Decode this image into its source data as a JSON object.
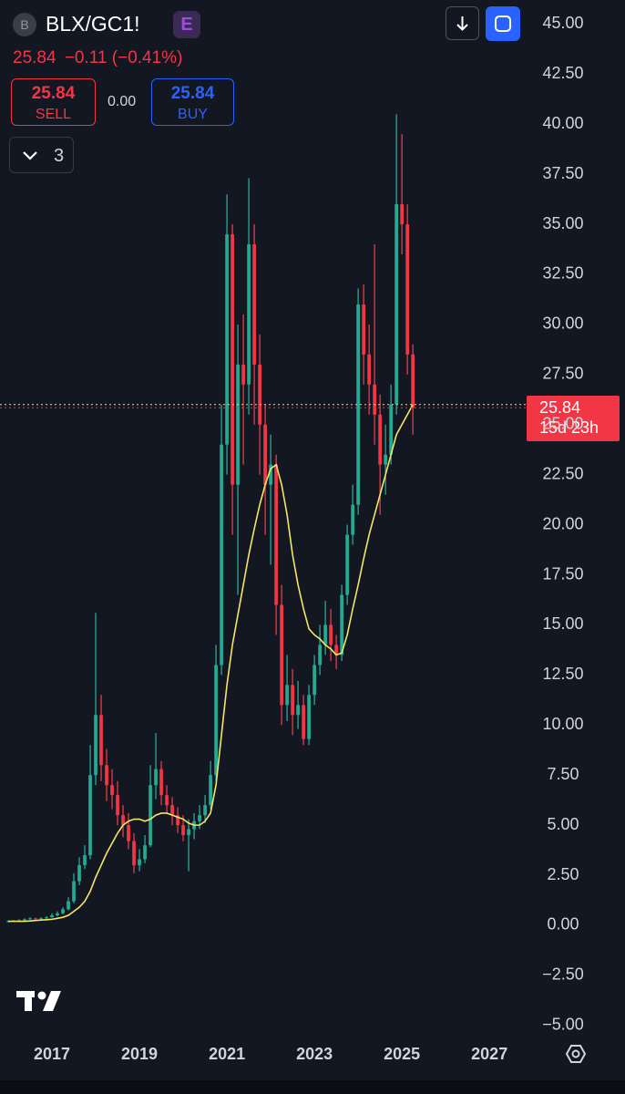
{
  "header": {
    "symbol": "BLX/GC1!",
    "symbol_icon": "B",
    "exchange_badge": "E",
    "last": "25.84",
    "change": "−0.11",
    "change_pct": "(−0.41%)",
    "sell_price": "25.84",
    "sell_label": "SELL",
    "spread": "0.00",
    "buy_price": "25.84",
    "buy_label": "BUY",
    "indicator_count": "3"
  },
  "chart_data": {
    "type": "candlestick",
    "up_color": "#22ab94",
    "down_color": "#f23645",
    "ma_color": "#f5e663",
    "countdown": "15d 23h",
    "xlim": [
      2015.8125,
      2027.85
    ],
    "xticks": [
      2017,
      2019,
      2021,
      2023,
      2025,
      2027
    ],
    "ylim": [
      -5.5,
      46.2
    ],
    "yticks": [
      {
        "value": 45,
        "label": "45.00"
      },
      {
        "value": 42.5,
        "label": "42.50"
      },
      {
        "value": 40,
        "label": "40.00"
      },
      {
        "value": 37.5,
        "label": "37.50"
      },
      {
        "value": 35,
        "label": "35.00"
      },
      {
        "value": 32.5,
        "label": "32.50"
      },
      {
        "value": 30,
        "label": "30.00"
      },
      {
        "value": 27.5,
        "label": "27.50"
      },
      {
        "value": 25,
        "label": "25.00"
      },
      {
        "value": 22.5,
        "label": "22.50"
      },
      {
        "value": 20,
        "label": "20.00"
      },
      {
        "value": 17.5,
        "label": "17.50"
      },
      {
        "value": 15,
        "label": "15.00"
      },
      {
        "value": 12.5,
        "label": "12.50"
      },
      {
        "value": 10,
        "label": "10.00"
      },
      {
        "value": 7.5,
        "label": "7.50"
      },
      {
        "value": 5,
        "label": "5.00"
      },
      {
        "value": 2.5,
        "label": "2.50"
      },
      {
        "value": 0,
        "label": "0.00"
      },
      {
        "value": -2.5,
        "label": "−2.50"
      },
      {
        "value": -5,
        "label": "−5.00"
      }
    ],
    "grid": false,
    "x": [
      2016,
      2016.125,
      2016.25,
      2016.375,
      2016.5,
      2016.625,
      2016.75,
      2016.875,
      2017,
      2017.125,
      2017.25,
      2017.375,
      2017.5,
      2017.625,
      2017.75,
      2017.875,
      2018,
      2018.125,
      2018.25,
      2018.375,
      2018.5,
      2018.625,
      2018.75,
      2018.875,
      2019,
      2019.125,
      2019.25,
      2019.375,
      2019.5,
      2019.625,
      2019.75,
      2019.875,
      2020,
      2020.125,
      2020.25,
      2020.375,
      2020.5,
      2020.625,
      2020.75,
      2020.875,
      2021,
      2021.125,
      2021.25,
      2021.375,
      2021.5,
      2021.625,
      2021.75,
      2021.875,
      2022,
      2022.125,
      2022.25,
      2022.375,
      2022.5,
      2022.625,
      2022.75,
      2022.875,
      2023,
      2023.125,
      2023.25,
      2023.375,
      2023.5,
      2023.625,
      2023.75,
      2023.875,
      2024,
      2024.125,
      2024.25,
      2024.375,
      2024.5,
      2024.625,
      2024.75,
      2024.875,
      2025,
      2025.125,
      2025.25
    ],
    "open": [
      0.18,
      0.2,
      0.22,
      0.25,
      0.3,
      0.35,
      0.3,
      0.35,
      0.4,
      0.5,
      0.6,
      0.8,
      1.2,
      2.2,
      3.0,
      3.5,
      7.5,
      10.5,
      8.0,
      7.0,
      6.5,
      5.5,
      5.0,
      4.2,
      3.0,
      3.3,
      4.0,
      7.0,
      7.8,
      6.5,
      6.0,
      5.5,
      5.0,
      4.5,
      4.8,
      5.2,
      5.5,
      6.0,
      7.5,
      13.0,
      24.0,
      34.5,
      22.0,
      28.0,
      27.0,
      34.0,
      28.0,
      25.0,
      22.0,
      23.0,
      16.0,
      11.0,
      12.0,
      10.5,
      11.0,
      9.3,
      11.5,
      13.0,
      14.0,
      15.0,
      14.0,
      13.5,
      16.5,
      19.5,
      21.0,
      31.0,
      28.5,
      27.0,
      25.5,
      23.0,
      23.5,
      26.0,
      36.0,
      35.0,
      28.5
    ],
    "high": [
      0.25,
      0.26,
      0.3,
      0.35,
      0.4,
      0.38,
      0.4,
      0.45,
      0.6,
      0.7,
      0.9,
      1.4,
      2.6,
      3.4,
      4.0,
      9.0,
      15.6,
      11.5,
      8.8,
      7.8,
      7.2,
      6.0,
      5.6,
      4.6,
      3.8,
      4.5,
      8.0,
      9.6,
      8.2,
      7.0,
      6.4,
      5.9,
      5.5,
      5.3,
      5.6,
      6.0,
      6.5,
      8.2,
      14.0,
      26.0,
      36.5,
      35.0,
      30.0,
      30.5,
      37.3,
      35.0,
      29.5,
      26.0,
      24.5,
      23.5,
      17.0,
      13.5,
      12.8,
      12.2,
      11.5,
      12.0,
      13.5,
      15.0,
      16.2,
      15.8,
      14.5,
      17.0,
      20.0,
      22.0,
      31.8,
      32.0,
      30.0,
      34.0,
      26.5,
      25.0,
      27.0,
      40.5,
      39.5,
      36.0,
      29.0
    ],
    "low": [
      0.15,
      0.17,
      0.2,
      0.22,
      0.28,
      0.27,
      0.28,
      0.32,
      0.38,
      0.45,
      0.55,
      0.75,
      1.1,
      2.0,
      2.8,
      3.3,
      7.0,
      7.2,
      6.2,
      5.8,
      5.0,
      4.4,
      3.8,
      2.6,
      2.7,
      3.1,
      3.9,
      6.3,
      6.0,
      5.6,
      5.0,
      4.6,
      4.2,
      2.7,
      4.3,
      4.8,
      5.1,
      5.8,
      7.2,
      12.5,
      22.5,
      19.5,
      16.5,
      23.0,
      25.5,
      25.0,
      22.5,
      19.5,
      18.0,
      14.5,
      10.0,
      10.2,
      9.5,
      9.8,
      9.0,
      9.0,
      11.0,
      12.5,
      13.5,
      13.2,
      12.8,
      13.2,
      16.0,
      19.0,
      20.5,
      27.0,
      25.5,
      24.0,
      20.5,
      21.5,
      23.0,
      25.5,
      33.5,
      27.5,
      24.5
    ],
    "close": [
      0.2,
      0.22,
      0.25,
      0.3,
      0.35,
      0.3,
      0.35,
      0.4,
      0.5,
      0.6,
      0.8,
      1.2,
      2.2,
      3.0,
      3.5,
      7.5,
      10.5,
      8.0,
      7.0,
      6.5,
      5.5,
      5.0,
      4.2,
      3.0,
      3.3,
      4.0,
      7.0,
      7.8,
      6.5,
      6.0,
      5.5,
      5.0,
      4.5,
      4.8,
      5.2,
      5.5,
      6.0,
      7.5,
      13.0,
      24.0,
      34.5,
      22.0,
      28.0,
      27.0,
      34.0,
      28.0,
      25.0,
      22.0,
      23.0,
      16.0,
      11.0,
      12.0,
      10.5,
      11.0,
      9.3,
      11.5,
      13.0,
      14.0,
      15.0,
      14.0,
      13.5,
      16.5,
      19.5,
      21.0,
      31.0,
      28.5,
      27.0,
      25.5,
      23.0,
      23.5,
      26.0,
      36.0,
      35.0,
      28.5,
      25.84
    ],
    "ma": [
      0.2,
      0.2,
      0.2,
      0.2,
      0.22,
      0.24,
      0.26,
      0.28,
      0.3,
      0.35,
      0.4,
      0.5,
      0.7,
      0.9,
      1.2,
      1.7,
      2.4,
      3.0,
      3.6,
      4.1,
      4.6,
      5.0,
      5.2,
      5.3,
      5.3,
      5.2,
      5.3,
      5.5,
      5.6,
      5.6,
      5.5,
      5.4,
      5.3,
      5.1,
      5.0,
      5.0,
      5.2,
      5.6,
      7.0,
      9.5,
      12.0,
      14.0,
      15.5,
      17.0,
      18.5,
      19.8,
      21.0,
      22.0,
      22.8,
      23.0,
      22.0,
      20.5,
      18.5,
      17.0,
      15.8,
      14.8,
      14.5,
      14.3,
      14.0,
      13.8,
      13.5,
      13.6,
      14.5,
      15.8,
      17.0,
      18.3,
      19.5,
      20.5,
      21.5,
      22.5,
      23.5,
      24.5,
      25.0,
      25.5,
      26.0
    ]
  }
}
